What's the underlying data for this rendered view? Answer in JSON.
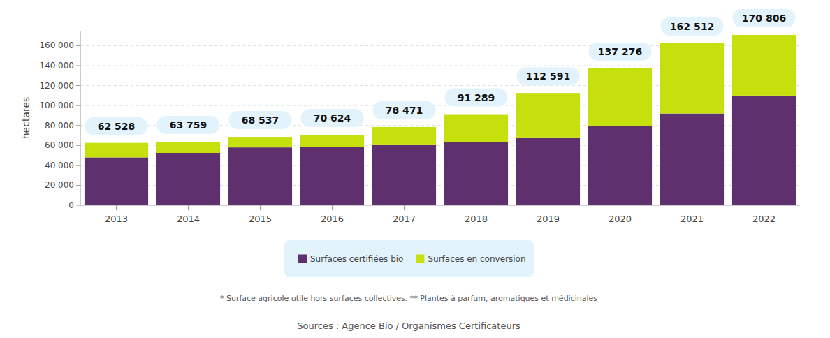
{
  "chart_data": {
    "type": "bar",
    "stacked": true,
    "y_label": "hectares",
    "categories": [
      "2013",
      "2014",
      "2015",
      "2016",
      "2017",
      "2018",
      "2019",
      "2020",
      "2021",
      "2022"
    ],
    "series": [
      {
        "name": "Surfaces certifiées bio",
        "color": "#5e316e",
        "values": [
          48000,
          52500,
          58000,
          58500,
          61000,
          63500,
          68000,
          79500,
          92000,
          110000
        ]
      },
      {
        "name": "Surfaces en conversion",
        "color": "#c5e00d",
        "values": [
          14528,
          11259,
          10537,
          12124,
          17471,
          27789,
          44591,
          57776,
          70512,
          60806
        ]
      }
    ],
    "totals": [
      62528,
      63759,
      68537,
      70624,
      78471,
      91289,
      112591,
      137276,
      162512,
      170806
    ],
    "total_labels": [
      "62 528",
      "63 759",
      "68 537",
      "70 624",
      "78 471",
      "91 289",
      "112 591",
      "137 276",
      "162 512",
      "170 806"
    ],
    "ylim": [
      0,
      175000
    ],
    "yticks": [
      0,
      {
        "value": 20000,
        "label": "20 000"
      },
      {
        "value": 40000,
        "label": "40 000"
      },
      {
        "value": 60000,
        "label": "60 000"
      },
      {
        "value": 80000,
        "label": "80 000"
      },
      {
        "value": 100000,
        "label": "100 000"
      },
      {
        "value": 120000,
        "label": "120 000"
      },
      {
        "value": 140000,
        "label": "140 000"
      },
      {
        "value": 160000,
        "label": "160 000"
      }
    ],
    "grid": true,
    "legend": "bottom",
    "footnote": "* Surface agricole utile hors surfaces collectives. ** Plantes à parfum, aromatiques et médicinales",
    "source": "Sources : Agence Bio / Organismes Certificateurs"
  }
}
